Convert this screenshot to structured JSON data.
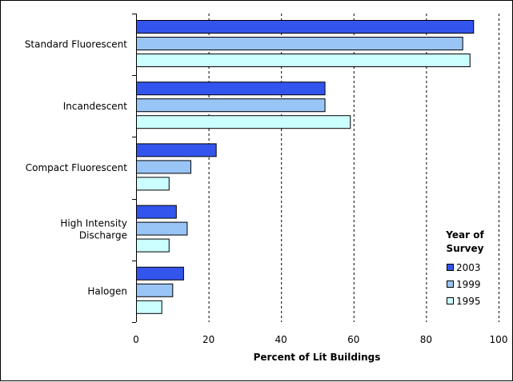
{
  "chart_data": {
    "type": "bar",
    "orientation": "horizontal",
    "categories": [
      "Standard Fluorescent",
      "Incandescent",
      "Compact Fluorescent",
      "High Intensity Discharge",
      "Halogen"
    ],
    "category_display_lines": [
      [
        "Standard Fluorescent"
      ],
      [
        "Incandescent"
      ],
      [
        "Compact Fluorescent"
      ],
      [
        "High Intensity",
        "Discharge"
      ],
      [
        "Halogen"
      ]
    ],
    "series": [
      {
        "name": "2003",
        "color": "#3355ee",
        "values": [
          93,
          52,
          22,
          11,
          13
        ]
      },
      {
        "name": "1999",
        "color": "#99c4f6",
        "values": [
          90,
          52,
          15,
          14,
          10
        ]
      },
      {
        "name": "1995",
        "color": "#ccffff",
        "values": [
          92,
          59,
          9,
          9,
          7
        ]
      }
    ],
    "xlabel": "Percent of Lit Buildings",
    "xlim": [
      0,
      100
    ],
    "xticks": [
      0,
      20,
      40,
      60,
      80,
      100
    ],
    "grid": "vertical dashed",
    "legend": {
      "title_lines": [
        "Year of",
        "Survey"
      ],
      "position": "right"
    }
  }
}
